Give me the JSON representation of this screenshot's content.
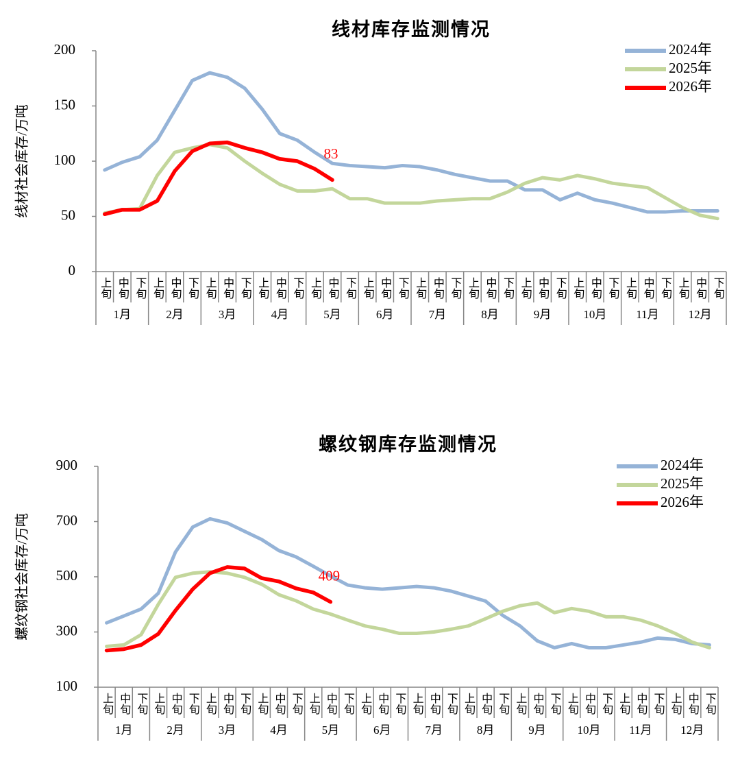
{
  "chart_data": [
    {
      "type": "line",
      "title": "线材库存监测情况",
      "y_label": "线材社会库存/万吨",
      "categories": [
        "上旬",
        "中旬",
        "下旬",
        "上旬",
        "中旬",
        "下旬",
        "上旬",
        "中旬",
        "下旬",
        "上旬",
        "中旬",
        "下旬",
        "上旬",
        "中旬",
        "下旬",
        "上旬",
        "中旬",
        "下旬",
        "上旬",
        "中旬",
        "下旬",
        "上旬",
        "中旬",
        "下旬",
        "上旬",
        "中旬",
        "下旬",
        "上旬",
        "中旬",
        "下旬",
        "上旬",
        "中旬",
        "下旬",
        "上旬",
        "中旬",
        "下旬"
      ],
      "months": [
        "1月",
        "2月",
        "3月",
        "4月",
        "5月",
        "6月",
        "7月",
        "8月",
        "9月",
        "10月",
        "11月",
        "12月"
      ],
      "ylim": [
        0,
        200
      ],
      "yticks": [
        0,
        50,
        100,
        150,
        200
      ],
      "legend": "upper right",
      "series": [
        {
          "name": "2024年",
          "color": "#95b3d7",
          "values": [
            92,
            99,
            104,
            119,
            146,
            173,
            180,
            176,
            166,
            147,
            125,
            119,
            108,
            98,
            96,
            95,
            94,
            96,
            95,
            92,
            88,
            85,
            82,
            82,
            74,
            74,
            65,
            71,
            65,
            62,
            58,
            54,
            54,
            55,
            55,
            55
          ]
        },
        {
          "name": "2025年",
          "color": "#c3d69b",
          "values": [
            53,
            56,
            57,
            87,
            108,
            112,
            115,
            112,
            100,
            89,
            79,
            73,
            73,
            75,
            66,
            66,
            62,
            62,
            62,
            64,
            65,
            66,
            66,
            72,
            80,
            85,
            83,
            87,
            84,
            80,
            78,
            76,
            67,
            58,
            51,
            48
          ]
        },
        {
          "name": "2026年",
          "color": "#ff0000",
          "show_last_value": true,
          "values": [
            52,
            56,
            56,
            64,
            91,
            109,
            116,
            117,
            112,
            108,
            102,
            100,
            93,
            83,
            null,
            null,
            null,
            null,
            null,
            null,
            null,
            null,
            null,
            null,
            null,
            null,
            null,
            null,
            null,
            null,
            null,
            null,
            null,
            null,
            null,
            null
          ]
        }
      ]
    },
    {
      "type": "line",
      "title": "螺纹钢库存监测情况",
      "y_label": "螺纹钢社会库存/万吨",
      "categories": [
        "上旬",
        "中旬",
        "下旬",
        "上旬",
        "中旬",
        "下旬",
        "上旬",
        "中旬",
        "下旬",
        "上旬",
        "中旬",
        "下旬",
        "上旬",
        "中旬",
        "下旬",
        "上旬",
        "中旬",
        "下旬",
        "上旬",
        "中旬",
        "下旬",
        "上旬",
        "中旬",
        "下旬",
        "上旬",
        "中旬",
        "下旬",
        "上旬",
        "中旬",
        "下旬",
        "上旬",
        "中旬",
        "下旬",
        "上旬",
        "中旬",
        "下旬"
      ],
      "months": [
        "1月",
        "2月",
        "3月",
        "4月",
        "5月",
        "6月",
        "7月",
        "8月",
        "9月",
        "10月",
        "11月",
        "12月"
      ],
      "ylim": [
        100,
        900
      ],
      "yticks": [
        100,
        300,
        500,
        700,
        900
      ],
      "legend": "upper right",
      "series": [
        {
          "name": "2024年",
          "color": "#95b3d7",
          "values": [
            333,
            358,
            383,
            440,
            590,
            680,
            710,
            695,
            665,
            635,
            595,
            572,
            538,
            503,
            470,
            460,
            455,
            460,
            465,
            460,
            448,
            430,
            412,
            360,
            322,
            268,
            243,
            258,
            243,
            243,
            253,
            263,
            278,
            273,
            258,
            253
          ]
        },
        {
          "name": "2025年",
          "color": "#c3d69b",
          "values": [
            248,
            253,
            290,
            400,
            498,
            513,
            518,
            513,
            498,
            473,
            435,
            413,
            383,
            365,
            343,
            322,
            310,
            295,
            295,
            300,
            310,
            322,
            348,
            375,
            395,
            405,
            370,
            385,
            375,
            355,
            355,
            343,
            322,
            295,
            263,
            243
          ]
        },
        {
          "name": "2026年",
          "color": "#ff0000",
          "show_last_value": true,
          "values": [
            233,
            238,
            253,
            293,
            378,
            455,
            513,
            535,
            530,
            495,
            483,
            458,
            443,
            409,
            null,
            null,
            null,
            null,
            null,
            null,
            null,
            null,
            null,
            null,
            null,
            null,
            null,
            null,
            null,
            null,
            null,
            null,
            null,
            null,
            null,
            null
          ]
        }
      ]
    }
  ]
}
